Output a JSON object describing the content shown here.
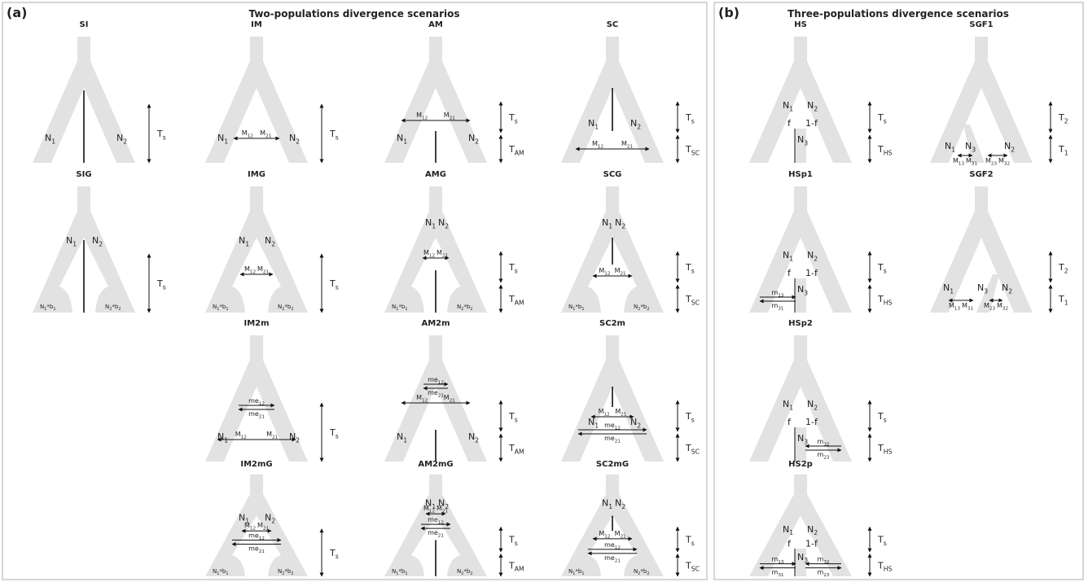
{
  "panels": [
    {
      "tag": "(a)",
      "title": "Two-populations divergence scenarios",
      "scenarios": [
        {
          "title": "SI",
          "pops": [
            [
              "N",
              "1"
            ],
            [
              "N",
              "2"
            ]
          ],
          "migration": [],
          "times": [
            [
              "T",
              "s"
            ]
          ]
        },
        {
          "title": "IM",
          "pops": [
            [
              "N",
              "1"
            ],
            [
              "N",
              "2"
            ]
          ],
          "migration": [
            [
              [
                "M",
                "12"
              ],
              [
                "M",
                "21"
              ]
            ]
          ],
          "times": [
            [
              "T",
              "s"
            ]
          ]
        },
        {
          "title": "AM",
          "pops": [
            [
              "N",
              "1"
            ],
            [
              "N",
              "2"
            ]
          ],
          "migration": [
            [
              [
                "M",
                "12"
              ],
              [
                "M",
                "21"
              ]
            ]
          ],
          "times": [
            [
              "T",
              "s"
            ],
            [
              "T",
              "AM"
            ]
          ]
        },
        {
          "title": "SC",
          "pops": [
            [
              "N",
              "1"
            ],
            [
              "N",
              "2"
            ]
          ],
          "migration": [
            [
              [
                "M",
                "12"
              ],
              [
                "M",
                "21"
              ]
            ]
          ],
          "times": [
            [
              "T",
              "s"
            ],
            [
              "T",
              "SC"
            ]
          ]
        },
        {
          "title": "SIG",
          "pops": [
            [
              "N",
              "1"
            ],
            [
              "N",
              "2"
            ],
            [
              "N",
              "1",
              "*b",
              "1"
            ],
            [
              "N",
              "2",
              "*b",
              "2"
            ]
          ],
          "migration": [],
          "times": [
            [
              "T",
              "s"
            ]
          ]
        },
        {
          "title": "IMG",
          "pops": [
            [
              "N",
              "1"
            ],
            [
              "N",
              "2"
            ],
            [
              "N",
              "1",
              "*b",
              "1"
            ],
            [
              "N",
              "2",
              "*b",
              "2"
            ]
          ],
          "migration": [
            [
              [
                "M",
                "12"
              ],
              [
                "M",
                "21"
              ]
            ]
          ],
          "times": [
            [
              "T",
              "s"
            ]
          ]
        },
        {
          "title": "AMG",
          "pops": [
            [
              "N",
              "1"
            ],
            [
              "N",
              "2"
            ],
            [
              "N",
              "1",
              "*b",
              "1"
            ],
            [
              "N",
              "2",
              "*b",
              "2"
            ]
          ],
          "migration": [
            [
              [
                "M",
                "12"
              ],
              [
                "M",
                "21"
              ]
            ]
          ],
          "times": [
            [
              "T",
              "s"
            ],
            [
              "T",
              "AM"
            ]
          ]
        },
        {
          "title": "SCG",
          "pops": [
            [
              "N",
              "1"
            ],
            [
              "N",
              "2"
            ],
            [
              "N",
              "1",
              "*b",
              "1"
            ],
            [
              "N",
              "2",
              "*b",
              "2"
            ]
          ],
          "migration": [
            [
              [
                "M",
                "12"
              ],
              [
                "M",
                "21"
              ]
            ]
          ],
          "times": [
            [
              "T",
              "s"
            ],
            [
              "T",
              "SC"
            ]
          ]
        },
        {
          "title": "IM2m",
          "pops": [
            [
              "N",
              "1"
            ],
            [
              "N",
              "2"
            ]
          ],
          "migration": [
            [
              [
                "me",
                "12"
              ],
              [
                "me",
                "21"
              ]
            ],
            [
              [
                "M",
                "12"
              ],
              [
                "M",
                "21"
              ]
            ]
          ],
          "times": [
            [
              "T",
              "s"
            ]
          ]
        },
        {
          "title": "AM2m",
          "pops": [
            [
              "N",
              "1"
            ],
            [
              "N",
              "2"
            ]
          ],
          "migration": [
            [
              [
                "me",
                "12"
              ],
              [
                "me",
                "21"
              ]
            ],
            [
              [
                "M",
                "12"
              ],
              [
                "M",
                "21"
              ]
            ]
          ],
          "times": [
            [
              "T",
              "s"
            ],
            [
              "T",
              "AM"
            ]
          ]
        },
        {
          "title": "SC2m",
          "pops": [
            [
              "N",
              "1"
            ],
            [
              "N",
              "2"
            ]
          ],
          "migration": [
            [
              [
                "M",
                "12"
              ],
              [
                "M",
                "21"
              ]
            ],
            [
              [
                "me",
                "12"
              ],
              [
                "me",
                "21"
              ]
            ]
          ],
          "times": [
            [
              "T",
              "s"
            ],
            [
              "T",
              "SC"
            ]
          ]
        },
        {
          "title": "IM2mG",
          "pops": [
            [
              "N",
              "1"
            ],
            [
              "N",
              "2"
            ],
            [
              "N",
              "1",
              "*b",
              "1"
            ],
            [
              "N",
              "2",
              "*b",
              "2"
            ]
          ],
          "migration": [
            [
              [
                "M",
                "12"
              ],
              [
                "M",
                "21"
              ]
            ],
            [
              [
                "me",
                "12"
              ],
              [
                "me",
                "21"
              ]
            ]
          ],
          "times": [
            [
              "T",
              "s"
            ]
          ]
        },
        {
          "title": "AM2mG",
          "pops": [
            [
              "N",
              "1"
            ],
            [
              "N",
              "2"
            ],
            [
              "N",
              "1",
              "*b",
              "1"
            ],
            [
              "N",
              "2",
              "*b",
              "2"
            ]
          ],
          "migration": [
            [
              [
                "M",
                "12"
              ],
              [
                "M",
                "21"
              ]
            ],
            [
              [
                "me",
                "12"
              ],
              [
                "me",
                "21"
              ]
            ]
          ],
          "times": [
            [
              "T",
              "s"
            ],
            [
              "T",
              "AM"
            ]
          ]
        },
        {
          "title": "SC2mG",
          "pops": [
            [
              "N",
              "1"
            ],
            [
              "N",
              "2"
            ],
            [
              "N",
              "1",
              "*b",
              "1"
            ],
            [
              "N",
              "2",
              "*b",
              "2"
            ]
          ],
          "migration": [
            [
              [
                "M",
                "12"
              ],
              [
                "M",
                "21"
              ]
            ],
            [
              [
                "me",
                "12"
              ],
              [
                "me",
                "21"
              ]
            ]
          ],
          "times": [
            [
              "T",
              "s"
            ],
            [
              "T",
              "SC"
            ]
          ]
        }
      ]
    },
    {
      "tag": "(b)",
      "title": "Three-populations divergence scenarios",
      "scenarios": [
        {
          "title": "HS",
          "pops": [
            [
              "N",
              "1"
            ],
            [
              "N",
              "2"
            ],
            [
              "f"
            ],
            [
              "1-f"
            ],
            [
              "N",
              "3"
            ]
          ],
          "migration": [],
          "times": [
            [
              "T",
              "s"
            ],
            [
              "T",
              "HS"
            ]
          ]
        },
        {
          "title": "SGF1",
          "pops": [
            [
              "N",
              "1"
            ],
            [
              "N",
              "3"
            ],
            [
              "N",
              "2"
            ]
          ],
          "migration": [
            [
              [
                "M",
                "13"
              ],
              [
                "M",
                "31"
              ]
            ],
            [
              [
                "M",
                "23"
              ],
              [
                "M",
                "32"
              ]
            ]
          ],
          "times": [
            [
              "T",
              "2"
            ],
            [
              "T",
              "1"
            ]
          ]
        },
        {
          "title": "HSp1",
          "pops": [
            [
              "N",
              "1"
            ],
            [
              "N",
              "2"
            ],
            [
              "f"
            ],
            [
              "1-f"
            ],
            [
              "N",
              "3"
            ]
          ],
          "migration": [
            [
              [
                "m",
                "13"
              ],
              [
                "m",
                "31"
              ]
            ]
          ],
          "times": [
            [
              "T",
              "s"
            ],
            [
              "T",
              "HS"
            ]
          ]
        },
        {
          "title": "SGF2",
          "pops": [
            [
              "N",
              "1"
            ],
            [
              "N",
              "3"
            ],
            [
              "N",
              "2"
            ]
          ],
          "migration": [
            [
              [
                "M",
                "13"
              ],
              [
                "M",
                "31"
              ]
            ],
            [
              [
                "M",
                "23"
              ],
              [
                "M",
                "32"
              ]
            ]
          ],
          "times": [
            [
              "T",
              "2"
            ],
            [
              "T",
              "1"
            ]
          ]
        },
        {
          "title": "HSp2",
          "pops": [
            [
              "N",
              "1"
            ],
            [
              "N",
              "2"
            ],
            [
              "f"
            ],
            [
              "1-f"
            ],
            [
              "N",
              "3"
            ]
          ],
          "migration": [
            [
              [
                "m",
                "32"
              ],
              [
                "m",
                "23"
              ]
            ]
          ],
          "times": [
            [
              "T",
              "s"
            ],
            [
              "T",
              "HS"
            ]
          ]
        },
        {
          "title": "HS2p",
          "pops": [
            [
              "N",
              "1"
            ],
            [
              "N",
              "2"
            ],
            [
              "f"
            ],
            [
              "1-f"
            ],
            [
              "N",
              "3"
            ]
          ],
          "migration": [
            [
              [
                "m",
                "13"
              ],
              [
                "m",
                "31"
              ]
            ],
            [
              [
                "m",
                "32"
              ],
              [
                "m",
                "23"
              ]
            ]
          ],
          "times": [
            [
              "T",
              "s"
            ],
            [
              "T",
              "HS"
            ]
          ]
        }
      ]
    }
  ]
}
